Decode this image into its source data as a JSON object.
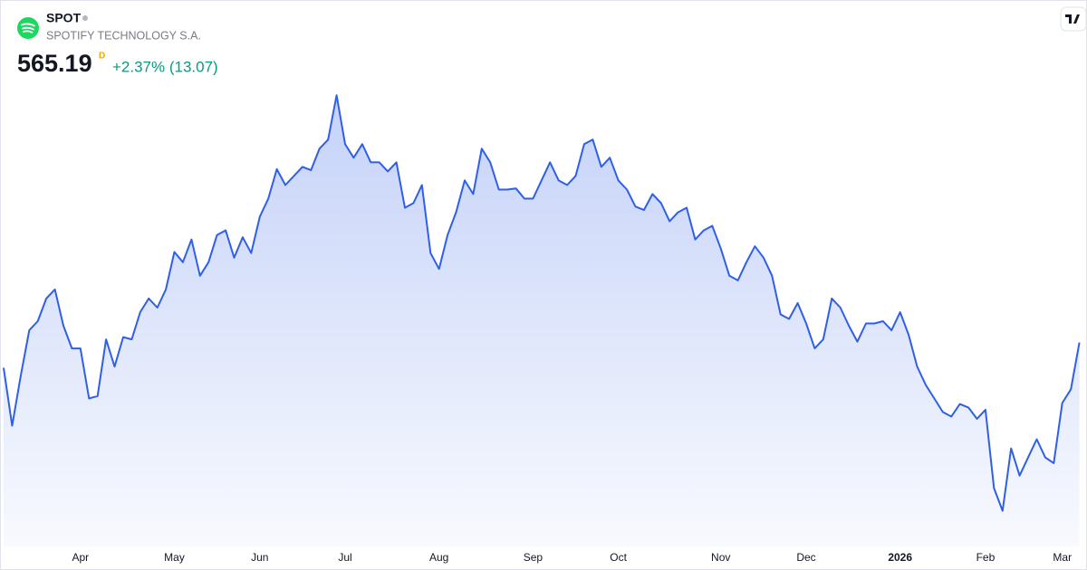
{
  "header": {
    "symbol": "SPOT",
    "name": "SPOTIFY TECHNOLOGY S.A.",
    "price": "565.19",
    "interval": "D",
    "change": "+2.37% (13.07)"
  },
  "chart_data": {
    "type": "area",
    "color": "#2f5fe8",
    "ylim": [
      380,
      800
    ],
    "categories": [
      null,
      null,
      null,
      null,
      null,
      null,
      null,
      null,
      null,
      "Apr",
      null,
      null,
      null,
      null,
      null,
      null,
      null,
      null,
      null,
      null,
      "May",
      null,
      null,
      null,
      null,
      null,
      null,
      null,
      null,
      null,
      "Jun",
      null,
      null,
      null,
      null,
      null,
      null,
      null,
      null,
      null,
      "Jul",
      null,
      null,
      null,
      null,
      null,
      null,
      null,
      null,
      null,
      null,
      "Aug",
      null,
      null,
      null,
      null,
      null,
      null,
      null,
      null,
      null,
      null,
      "Sep",
      null,
      null,
      null,
      null,
      null,
      null,
      null,
      null,
      null,
      "Oct",
      null,
      null,
      null,
      null,
      null,
      null,
      null,
      null,
      null,
      null,
      null,
      "Nov",
      null,
      null,
      null,
      null,
      null,
      null,
      null,
      null,
      null,
      "Dec",
      null,
      null,
      null,
      null,
      null,
      null,
      null,
      null,
      null,
      null,
      "2026",
      null,
      null,
      null,
      null,
      null,
      null,
      null,
      null,
      null,
      "Feb",
      null,
      null,
      null,
      null,
      null,
      null,
      null,
      null,
      "Mar",
      null,
      null
    ],
    "values": [
      543,
      492,
      536,
      576,
      584,
      604,
      612,
      580,
      560,
      560,
      516,
      518,
      568,
      544,
      570,
      568,
      592,
      604,
      596,
      612,
      645,
      636,
      656,
      624,
      636,
      660,
      664,
      640,
      658,
      644,
      676,
      692,
      718,
      704,
      712,
      720,
      717,
      736,
      744,
      783,
      740,
      728,
      740,
      724,
      724,
      716,
      724,
      684,
      688,
      704,
      644,
      630,
      660,
      680,
      708,
      696,
      736,
      724,
      700,
      700,
      701,
      692,
      692,
      708,
      724,
      708,
      704,
      712,
      740,
      744,
      720,
      728,
      708,
      700,
      685,
      682,
      696,
      688,
      672,
      680,
      684,
      656,
      664,
      668,
      648,
      624,
      620,
      636,
      650,
      640,
      624,
      590,
      586,
      600,
      582,
      560,
      568,
      604,
      596,
      580,
      566,
      582,
      582,
      584,
      576,
      592,
      572,
      544,
      528,
      516,
      504,
      500,
      511,
      508,
      498,
      506,
      437,
      417,
      472,
      448,
      464,
      480,
      464,
      459,
      512,
      524,
      565.19
    ]
  }
}
